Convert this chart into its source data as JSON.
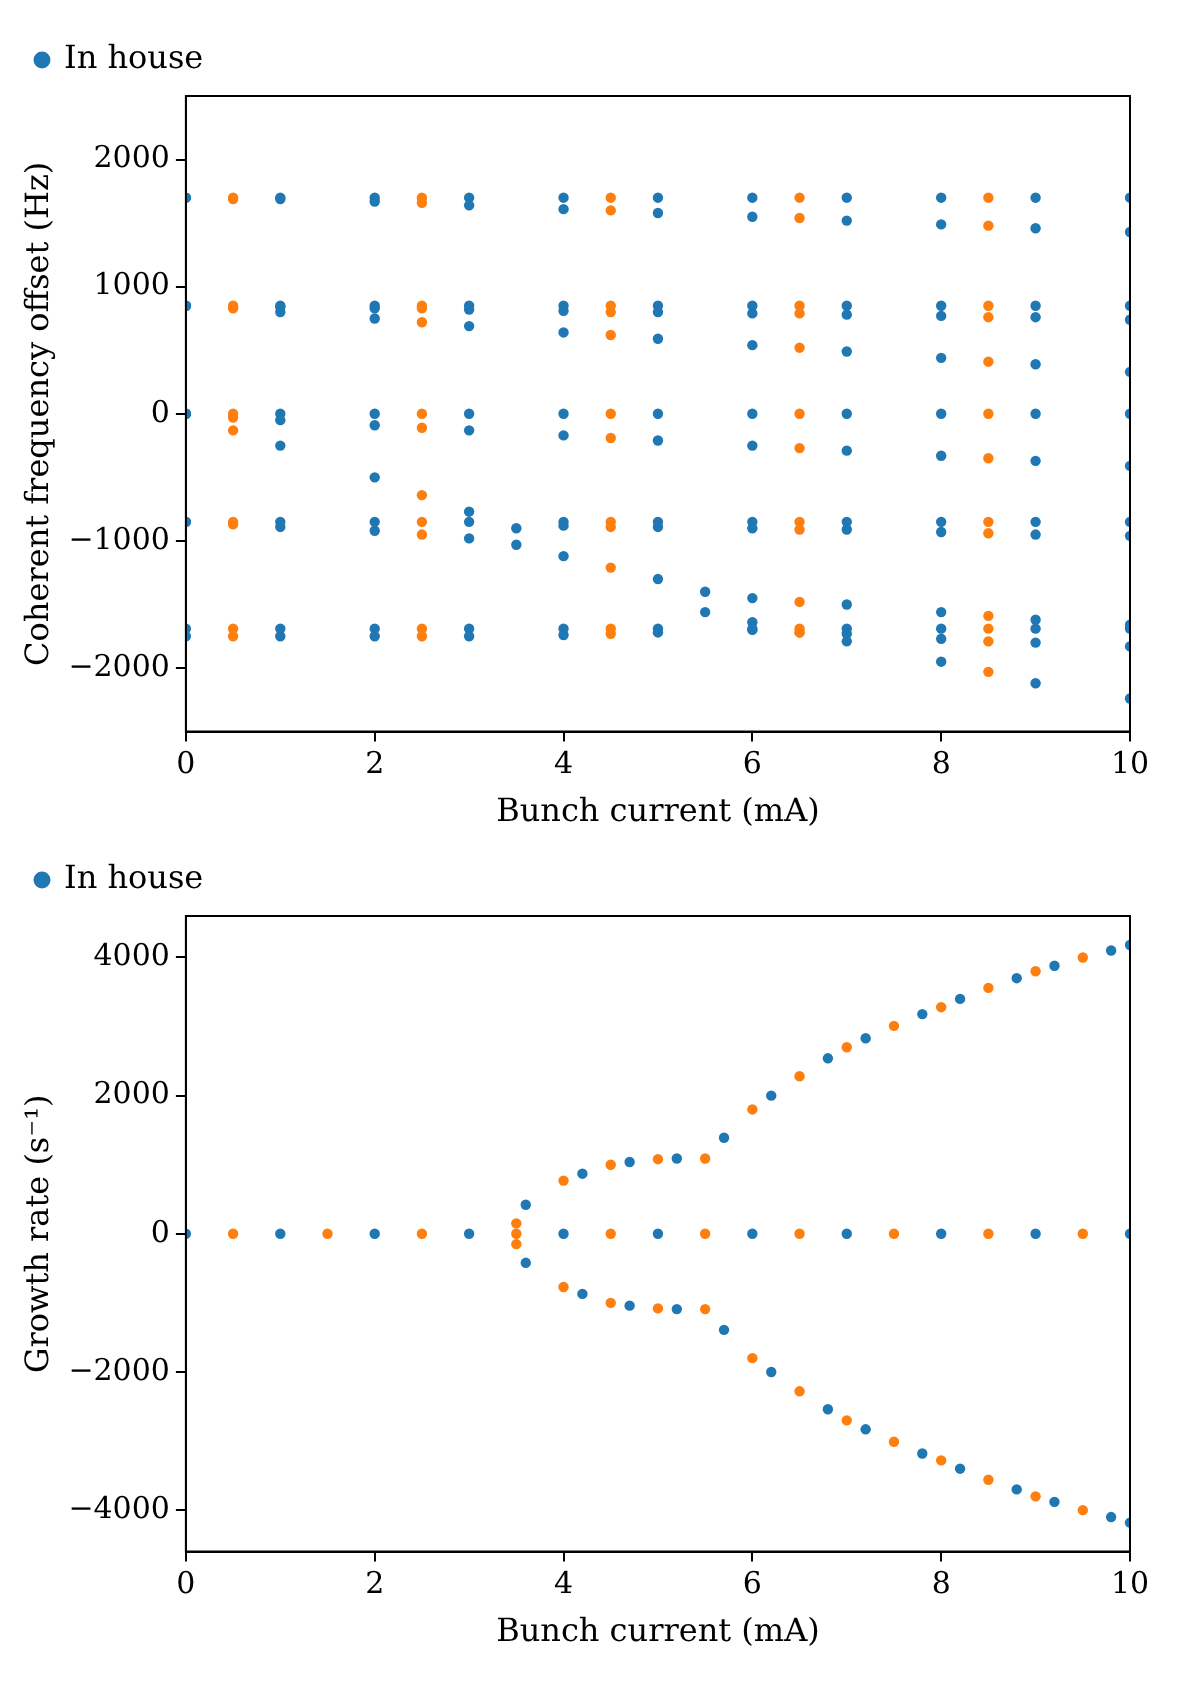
{
  "chart_data": [
    {
      "type": "scatter",
      "xlabel": "Bunch current (mA)",
      "ylabel": "Coherent frequency offset (Hz)",
      "xlim": [
        0,
        10
      ],
      "xticks": [
        0,
        2,
        4,
        6,
        8,
        10
      ],
      "ylim": [
        -2500,
        2500
      ],
      "yticks": [
        -2000,
        -1000,
        0,
        1000,
        2000
      ],
      "legend": "top left",
      "marker": "circle",
      "series": [
        {
          "name": "In house",
          "color": "#1f77b4",
          "x": [
            0,
            1,
            2,
            3,
            4,
            5,
            6,
            7,
            8,
            9,
            10,
            0,
            1,
            2,
            3,
            4,
            5,
            6,
            7,
            8,
            9,
            10,
            0,
            1,
            2,
            3,
            4,
            5,
            6,
            7,
            8,
            9,
            10,
            0,
            1,
            2,
            3,
            4,
            5,
            6,
            7,
            8,
            9,
            10,
            0,
            1,
            2,
            3,
            4,
            5,
            6,
            7,
            8,
            9,
            10,
            0,
            1,
            2,
            3,
            4,
            5,
            6,
            7,
            8,
            9,
            10,
            0,
            1,
            2,
            3,
            4,
            5,
            6,
            7,
            8,
            9,
            10,
            0,
            1,
            2,
            3,
            3.5,
            4,
            5,
            5.5,
            6,
            7,
            8,
            9,
            10,
            0,
            1,
            2,
            3,
            4,
            5,
            6,
            7,
            8,
            9,
            10,
            0,
            1,
            2,
            3,
            3.5,
            4,
            5,
            6,
            7,
            8,
            9,
            10,
            0,
            1,
            2,
            3,
            4,
            5,
            6,
            7,
            8,
            9,
            10,
            0,
            1,
            2,
            3,
            4,
            5,
            6,
            7,
            8,
            9,
            10,
            5.5,
            6,
            7,
            8,
            9,
            10
          ],
          "values": [
            1700,
            1700,
            1700,
            1700,
            1700,
            1700,
            1700,
            1700,
            1700,
            1700,
            1700,
            1700,
            1690,
            1670,
            1640,
            1610,
            1580,
            1550,
            1520,
            1490,
            1460,
            1430,
            850,
            850,
            850,
            850,
            850,
            850,
            850,
            850,
            850,
            850,
            850,
            850,
            840,
            830,
            820,
            810,
            800,
            790,
            780,
            770,
            760,
            740,
            850,
            800,
            750,
            690,
            640,
            590,
            540,
            490,
            440,
            390,
            330,
            0,
            0,
            0,
            0,
            0,
            0,
            0,
            0,
            0,
            0,
            0,
            0,
            -50,
            -90,
            -130,
            -170,
            -210,
            -250,
            -290,
            -330,
            -370,
            -410,
            0,
            -250,
            -500,
            -770,
            -900,
            -1120,
            -1300,
            -1400,
            -1640,
            -1790,
            -1950,
            -2120,
            -2240,
            -850,
            -850,
            -850,
            -850,
            -850,
            -850,
            -850,
            -850,
            -850,
            -850,
            -850,
            -850,
            -890,
            -920,
            -980,
            -1030,
            -880,
            -890,
            -900,
            -910,
            -930,
            -950,
            -960,
            -1690,
            -1690,
            -1690,
            -1690,
            -1690,
            -1690,
            -1690,
            -1690,
            -1690,
            -1690,
            -1690,
            -1750,
            -1750,
            -1750,
            -1750,
            -1740,
            -1720,
            -1700,
            -1730,
            -1770,
            -1800,
            -1830,
            -1560,
            -1450,
            -1500,
            -1560,
            -1620,
            -1660
          ]
        },
        {
          "color": "#ff7f0e",
          "x": [
            0.5,
            2.5,
            4.5,
            6.5,
            8.5,
            0.5,
            2.5,
            4.5,
            6.5,
            8.5,
            0.5,
            2.5,
            4.5,
            6.5,
            8.5,
            0.5,
            2.5,
            4.5,
            6.5,
            8.5,
            0.5,
            2.5,
            4.5,
            6.5,
            8.5,
            0.5,
            2.5,
            4.5,
            6.5,
            8.5,
            0.5,
            2.5,
            4.5,
            6.5,
            8.5,
            0.5,
            2.5,
            4.5,
            6.5,
            8.5,
            0.5,
            2.5,
            4.5,
            6.5,
            8.5,
            0.5,
            2.5,
            4.5,
            6.5,
            8.5,
            0.5,
            2.5,
            4.5,
            6.5,
            8.5,
            0.5,
            2.5,
            4.5,
            6.5,
            8.5,
            6.5,
            8.5
          ],
          "values": [
            1700,
            1700,
            1700,
            1700,
            1700,
            1690,
            1660,
            1600,
            1540,
            1480,
            850,
            850,
            850,
            850,
            850,
            840,
            830,
            800,
            790,
            760,
            830,
            720,
            620,
            520,
            410,
            0,
            0,
            0,
            0,
            0,
            -30,
            -110,
            -190,
            -270,
            -350,
            -130,
            -640,
            -1210,
            -1720,
            -2030,
            -850,
            -850,
            -850,
            -850,
            -850,
            -870,
            -950,
            -890,
            -910,
            -940,
            -1690,
            -1690,
            -1690,
            -1690,
            -1690,
            -1750,
            -1750,
            -1730,
            -1720,
            -1790,
            -1480,
            -1590
          ]
        }
      ]
    },
    {
      "type": "scatter",
      "xlabel": "Bunch current (mA)",
      "ylabel": "Growth rate (s⁻¹)",
      "xlim": [
        0,
        10
      ],
      "xticks": [
        0,
        2,
        4,
        6,
        8,
        10
      ],
      "ylim": [
        -4600,
        4600
      ],
      "yticks": [
        -4000,
        -2000,
        0,
        2000,
        4000
      ],
      "legend": "top left",
      "marker": "circle",
      "series": [
        {
          "name": "In house",
          "color": "#1f77b4",
          "x": [
            0,
            1,
            2,
            3,
            4,
            5,
            6,
            7,
            8,
            9,
            10,
            3.6,
            4.2,
            4.7,
            5.2,
            5.7,
            6.2,
            6.8,
            7.2,
            7.8,
            8.2,
            8.8,
            9.2,
            9.8,
            10,
            3.6,
            4.2,
            4.7,
            5.2,
            5.7,
            6.2,
            6.8,
            7.2,
            7.8,
            8.2,
            8.8,
            9.2,
            9.8,
            10
          ],
          "values": [
            0,
            0,
            0,
            0,
            0,
            0,
            0,
            0,
            0,
            0,
            0,
            420,
            870,
            1040,
            1090,
            1390,
            2000,
            2540,
            2830,
            3180,
            3400,
            3700,
            3880,
            4100,
            4180,
            -420,
            -870,
            -1040,
            -1090,
            -1390,
            -2000,
            -2540,
            -2830,
            -3180,
            -3400,
            -3700,
            -3880,
            -4100,
            -4180
          ]
        },
        {
          "color": "#ff7f0e",
          "x": [
            0.5,
            1.5,
            2.5,
            3.5,
            3.5,
            3.5,
            4.5,
            5.5,
            6.5,
            7.5,
            8.5,
            9.5,
            4,
            4.5,
            5,
            5.5,
            6,
            6.5,
            7,
            7.5,
            8,
            8.5,
            9,
            9.5,
            4,
            4.5,
            5,
            5.5,
            6,
            6.5,
            7,
            7.5,
            8,
            8.5,
            9,
            9.5
          ],
          "values": [
            0,
            0,
            0,
            150,
            0,
            -150,
            0,
            0,
            0,
            0,
            0,
            0,
            770,
            1000,
            1080,
            1090,
            1800,
            2280,
            2700,
            3010,
            3280,
            3560,
            3800,
            4000,
            -770,
            -1000,
            -1080,
            -1090,
            -1800,
            -2280,
            -2700,
            -3010,
            -3280,
            -3560,
            -3800,
            -4000
          ]
        }
      ]
    }
  ]
}
